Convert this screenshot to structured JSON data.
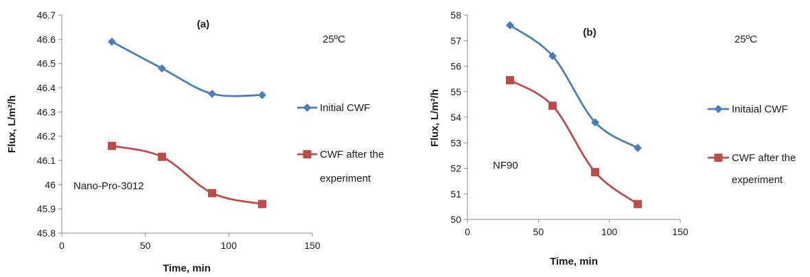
{
  "chart_data": [
    {
      "type": "line",
      "panel_label": "(a)",
      "annotations": [
        "25ºC",
        "Nano-Pro-3012"
      ],
      "xlabel": "Time, min",
      "ylabel": "Flux, L/m²/h",
      "xlim": [
        0,
        150
      ],
      "ylim": [
        45.8,
        46.7
      ],
      "xticks": [
        "0",
        "50",
        "100",
        "150"
      ],
      "yticks": [
        "45.8",
        "45.9",
        "46",
        "46.1",
        "46.2",
        "46.3",
        "46.4",
        "46.5",
        "46.6",
        "46.7"
      ],
      "grid": false,
      "legend_position": "right",
      "series": [
        {
          "name": "Initial CWF",
          "marker": "diamond",
          "color": "#4a7ebb",
          "x": [
            30,
            60,
            90,
            120
          ],
          "y": [
            46.59,
            46.48,
            46.375,
            46.37
          ]
        },
        {
          "name": "CWF after the experiment",
          "legend_lines": [
            "CWF after the",
            "experiment"
          ],
          "marker": "square",
          "color": "#be4b48",
          "x": [
            30,
            60,
            90,
            120
          ],
          "y": [
            46.16,
            46.115,
            45.965,
            45.92
          ]
        }
      ]
    },
    {
      "type": "line",
      "panel_label": "(b)",
      "annotations": [
        "25ºC",
        "NF90"
      ],
      "xlabel": "Time, min",
      "ylabel": "Flux, L/m²/h",
      "xlim": [
        0,
        150
      ],
      "ylim": [
        50,
        58
      ],
      "xticks": [
        "0",
        "50",
        "100",
        "150"
      ],
      "yticks": [
        "50",
        "51",
        "52",
        "53",
        "54",
        "55",
        "56",
        "57",
        "58"
      ],
      "grid": false,
      "legend_position": "right",
      "series": [
        {
          "name": "Initaial CWF",
          "marker": "diamond",
          "color": "#4a7ebb",
          "x": [
            30,
            60,
            90,
            120
          ],
          "y": [
            57.6,
            56.4,
            53.8,
            52.8
          ]
        },
        {
          "name": "CWF after the experiment",
          "legend_lines": [
            "CWF after the",
            "experiment"
          ],
          "marker": "square",
          "color": "#be4b48",
          "x": [
            30,
            60,
            90,
            120
          ],
          "y": [
            55.45,
            54.45,
            51.85,
            50.6
          ]
        }
      ]
    }
  ]
}
